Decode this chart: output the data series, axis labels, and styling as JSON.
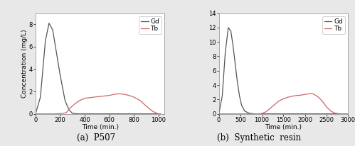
{
  "chart_a": {
    "title": "(a)  P507",
    "xlabel": "Time (min.)",
    "ylabel": "Concentration (mg/L)",
    "xlim": [
      0,
      1050
    ],
    "ylim": [
      0,
      9
    ],
    "yticks": [
      0,
      2,
      4,
      6,
      8
    ],
    "xticks": [
      0,
      200,
      400,
      600,
      800,
      1000
    ],
    "gd_x": [
      0,
      40,
      80,
      110,
      140,
      170,
      200,
      240,
      270,
      300,
      350,
      400,
      500,
      600,
      700,
      800,
      900,
      1000
    ],
    "gd_y": [
      0,
      1.5,
      6.5,
      8.1,
      7.5,
      5.5,
      3.5,
      1.2,
      0.4,
      0.05,
      0.0,
      0.0,
      0.0,
      0.0,
      0.0,
      0.0,
      0.0,
      0.0
    ],
    "tb_x": [
      0,
      150,
      200,
      250,
      280,
      320,
      360,
      400,
      440,
      480,
      520,
      560,
      600,
      640,
      680,
      720,
      760,
      800,
      850,
      900,
      950,
      980,
      1000,
      1020
    ],
    "tb_y": [
      0,
      0.0,
      0.02,
      0.1,
      0.5,
      0.9,
      1.2,
      1.4,
      1.45,
      1.5,
      1.55,
      1.6,
      1.65,
      1.75,
      1.8,
      1.75,
      1.65,
      1.5,
      1.2,
      0.7,
      0.25,
      0.08,
      0.0,
      0.0
    ],
    "gd_color": "#555555",
    "tb_color": "#cc6666",
    "legend_gd": "Gd",
    "legend_tb": "Tb"
  },
  "chart_b": {
    "title": "(b)  Synthetic  resin",
    "xlabel": "Time (min.)",
    "ylabel": "Concentration (mg/L)",
    "xlim": [
      0,
      3000
    ],
    "ylim": [
      0,
      14
    ],
    "yticks": [
      0,
      2,
      4,
      6,
      8,
      10,
      12,
      14
    ],
    "xticks": [
      0,
      500,
      1000,
      1500,
      2000,
      2500,
      3000
    ],
    "gd_x": [
      0,
      80,
      150,
      220,
      280,
      330,
      380,
      430,
      480,
      530,
      600,
      700,
      800,
      900,
      1000,
      1100,
      1200,
      1400,
      1600,
      2000,
      2500,
      3000
    ],
    "gd_y": [
      0,
      2.5,
      8.5,
      12.0,
      11.5,
      9.5,
      7.0,
      4.5,
      2.5,
      1.2,
      0.4,
      0.1,
      0.02,
      0.0,
      0.0,
      0.0,
      0.0,
      0.0,
      0.0,
      0.0,
      0.0,
      0.0
    ],
    "tb_x": [
      0,
      600,
      900,
      1000,
      1100,
      1200,
      1300,
      1400,
      1500,
      1600,
      1700,
      1800,
      1900,
      2000,
      2100,
      2150,
      2200,
      2300,
      2400,
      2500,
      2600,
      2700,
      2800,
      2900,
      3000
    ],
    "tb_y": [
      0,
      0.0,
      0.0,
      0.05,
      0.3,
      0.8,
      1.3,
      1.8,
      2.1,
      2.3,
      2.45,
      2.55,
      2.6,
      2.7,
      2.8,
      2.85,
      2.75,
      2.4,
      1.8,
      1.0,
      0.4,
      0.1,
      0.02,
      0.0,
      0.0
    ],
    "gd_color": "#555555",
    "tb_color": "#cc6666",
    "legend_gd": "Gd",
    "legend_tb": "Tb"
  },
  "background_color": "#e8e8e8",
  "plot_bg_color": "#ffffff",
  "title_fontsize": 8.5,
  "label_fontsize": 6.5,
  "tick_fontsize": 6,
  "legend_fontsize": 6.5,
  "linewidth": 0.9
}
